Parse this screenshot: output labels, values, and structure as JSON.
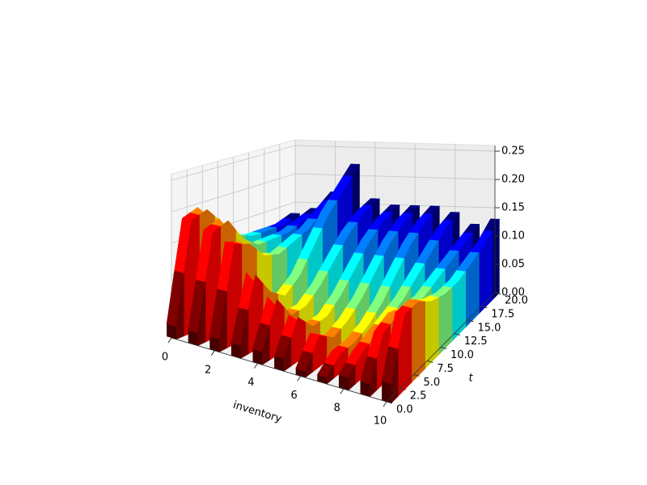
{
  "chart_data": {
    "type": "surface3d",
    "x_label": "inventory",
    "y_label": "t",
    "x": [
      0,
      2.5,
      5,
      7.5,
      10,
      12.5,
      15,
      17.5,
      20
    ],
    "series": [
      {
        "name": "0",
        "values": [
          0.02,
          0.18,
          0.19,
          0.16,
          0.13,
          0.12,
          0.12,
          0.12,
          0.13
        ]
      },
      {
        "name": "1",
        "values": [
          0.02,
          0.17,
          0.18,
          0.14,
          0.12,
          0.12,
          0.12,
          0.13,
          0.14
        ]
      },
      {
        "name": "2",
        "values": [
          0.02,
          0.16,
          0.15,
          0.12,
          0.11,
          0.12,
          0.13,
          0.15,
          0.17
        ]
      },
      {
        "name": "3",
        "values": [
          0.02,
          0.12,
          0.08,
          0.06,
          0.08,
          0.12,
          0.16,
          0.19,
          0.22
        ]
      },
      {
        "name": "4",
        "values": [
          0.02,
          0.09,
          0.05,
          0.05,
          0.07,
          0.1,
          0.13,
          0.15,
          0.16
        ]
      },
      {
        "name": "5",
        "values": [
          0.02,
          0.07,
          0.04,
          0.04,
          0.06,
          0.09,
          0.12,
          0.14,
          0.15
        ]
      },
      {
        "name": "6",
        "values": [
          0.01,
          0.05,
          0.03,
          0.04,
          0.06,
          0.09,
          0.12,
          0.14,
          0.15
        ]
      },
      {
        "name": "7",
        "values": [
          0.01,
          0.03,
          0.03,
          0.04,
          0.06,
          0.09,
          0.12,
          0.14,
          0.15
        ]
      },
      {
        "name": "8",
        "values": [
          0.02,
          0.04,
          0.05,
          0.06,
          0.07,
          0.09,
          0.11,
          0.13,
          0.14
        ]
      },
      {
        "name": "9",
        "values": [
          0.02,
          0.08,
          0.09,
          0.08,
          0.08,
          0.09,
          0.1,
          0.11,
          0.12
        ]
      },
      {
        "name": "10",
        "values": [
          0.03,
          0.12,
          0.12,
          0.1,
          0.09,
          0.09,
          0.1,
          0.11,
          0.13
        ]
      }
    ],
    "inventory": [
      0,
      1,
      2,
      3,
      4,
      5,
      6,
      7,
      8,
      9,
      10
    ],
    "colormap": "jet",
    "xlim": [
      0,
      10
    ],
    "xticks": [
      0,
      2,
      4,
      6,
      8,
      10
    ],
    "ylim": [
      0,
      20
    ],
    "yticks": [
      {
        "value": 0,
        "label": "0.0"
      },
      2.5,
      {
        "value": 5,
        "label": "5.0"
      },
      7.5,
      {
        "value": 10,
        "label": "10.0"
      },
      12.5,
      {
        "value": 15,
        "label": "15.0"
      },
      17.5,
      {
        "value": 20,
        "label": "20.0"
      }
    ],
    "zlim": [
      0,
      0.26
    ],
    "zticks": [
      {
        "value": 0,
        "label": "0.00"
      },
      {
        "value": 0.05,
        "label": "0.05"
      },
      {
        "value": 0.1,
        "label": "0.10"
      },
      {
        "value": 0.15,
        "label": "0.15"
      },
      {
        "value": 0.2,
        "label": "0.20"
      },
      {
        "value": 0.25,
        "label": "0.25"
      }
    ],
    "grid": true
  }
}
